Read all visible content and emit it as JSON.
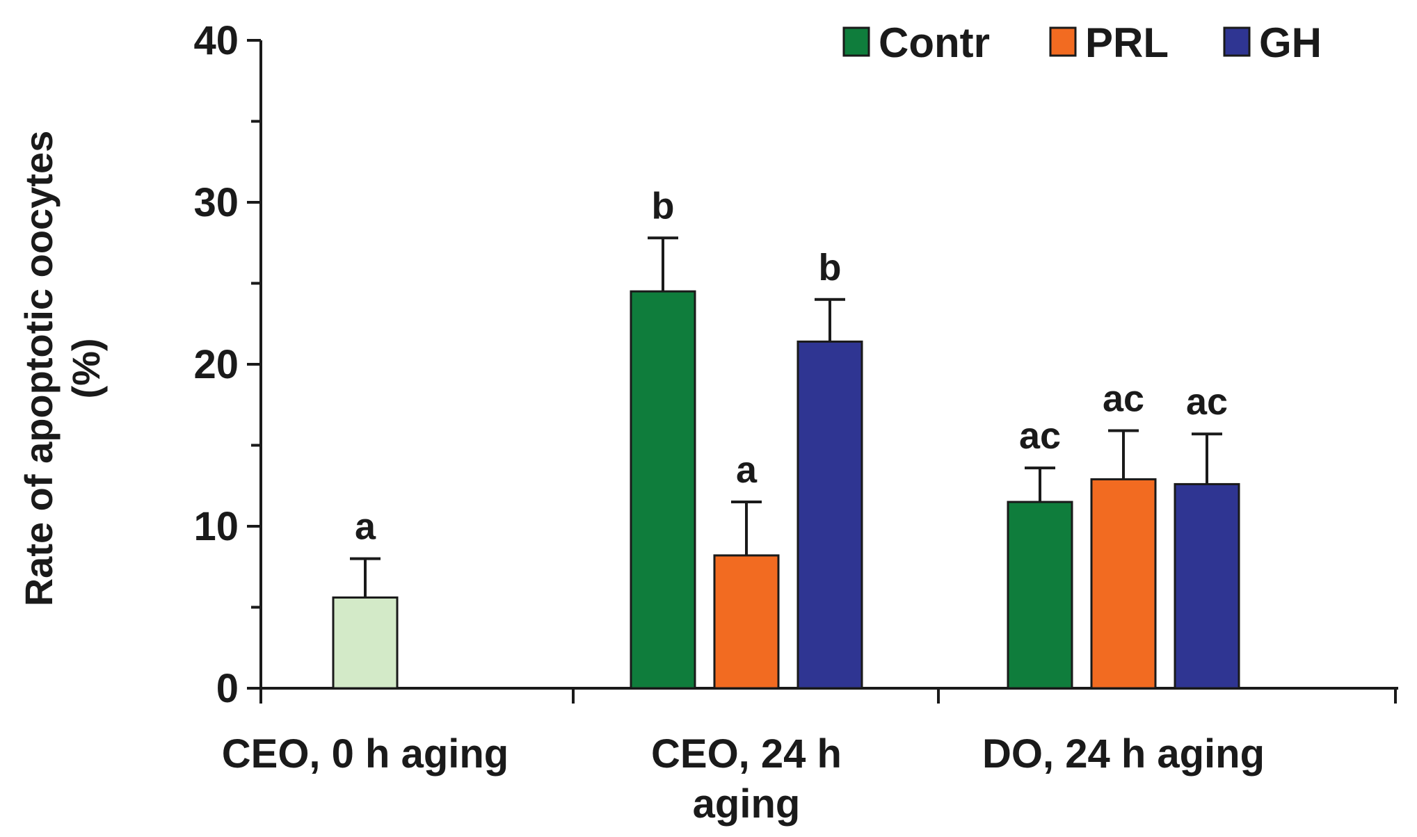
{
  "chart_data": {
    "type": "bar",
    "title": "",
    "xlabel": "",
    "ylabel_lines": [
      "Rate of apoptotic oocytes",
      "(%)"
    ],
    "ylim": [
      0,
      40
    ],
    "yticks": [
      "0",
      "10",
      "20",
      "30",
      "40"
    ],
    "legend_position": "top-right",
    "legend": [
      {
        "name": "Contr",
        "color": "#0f7d3c"
      },
      {
        "name": "PRL",
        "color": "#f26b21"
      },
      {
        "name": "GH",
        "color": "#2f3592"
      }
    ],
    "groups": [
      {
        "label_lines": [
          "CEO, 0 h aging"
        ],
        "bars": [
          {
            "series": "Contr",
            "value": 5.6,
            "error": 2.4,
            "sig": "a",
            "color": "#d3eac8"
          }
        ]
      },
      {
        "label_lines": [
          "CEO, 24 h",
          "aging"
        ],
        "bars": [
          {
            "series": "Contr",
            "value": 24.5,
            "error": 3.3,
            "sig": "b",
            "color": "#0f7d3c"
          },
          {
            "series": "PRL",
            "value": 8.2,
            "error": 3.3,
            "sig": "a",
            "color": "#f26b21"
          },
          {
            "series": "GH",
            "value": 21.4,
            "error": 2.6,
            "sig": "b",
            "color": "#2f3592"
          }
        ]
      },
      {
        "label_lines": [
          "DO, 24 h aging"
        ],
        "bars": [
          {
            "series": "Contr",
            "value": 11.5,
            "error": 2.1,
            "sig": "ac",
            "color": "#0f7d3c"
          },
          {
            "series": "PRL",
            "value": 12.9,
            "error": 3.0,
            "sig": "ac",
            "color": "#f26b21"
          },
          {
            "series": "GH",
            "value": 12.6,
            "error": 3.1,
            "sig": "ac",
            "color": "#2f3592"
          }
        ]
      }
    ]
  }
}
